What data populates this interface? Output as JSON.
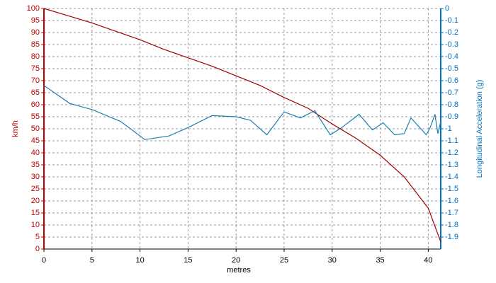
{
  "chart_data": {
    "type": "line",
    "x_label": "metres",
    "y_label": "km/h",
    "y2_label": "Longitudinal Acceleration (g)",
    "xlim": [
      0,
      41.3
    ],
    "xticks": [
      0,
      5,
      10,
      15,
      20,
      25,
      30,
      35,
      40
    ],
    "ylim": [
      0,
      100
    ],
    "yticks": [
      0,
      5,
      10,
      15,
      20,
      25,
      30,
      35,
      40,
      45,
      50,
      55,
      60,
      65,
      70,
      75,
      80,
      85,
      90,
      95,
      100
    ],
    "y2lim": [
      -2,
      0
    ],
    "y2ticks": [
      0,
      -0.1,
      -0.2,
      -0.3,
      -0.4,
      -0.5,
      -0.6,
      -0.7,
      -0.8,
      -0.9,
      -1,
      -1.1,
      -1.2,
      -1.3,
      -1.4,
      -1.5,
      -1.6,
      -1.7,
      -1.8,
      -1.9
    ],
    "grid": true,
    "y_color": "#c00000",
    "y2_color": "#0070c0",
    "series": [
      {
        "color": "#a00000",
        "axis": "y",
        "x": [
          0,
          2.5,
          5,
          7.5,
          10,
          12.5,
          15,
          17.5,
          20,
          22.5,
          25,
          27.5,
          30,
          32.5,
          35,
          37.5,
          40,
          41.3
        ],
        "values": [
          100,
          97,
          94,
          90.5,
          87,
          83,
          79.5,
          76,
          72,
          68,
          63,
          58.5,
          52,
          46,
          39,
          30,
          17,
          3
        ]
      },
      {
        "color": "#1a7fb0",
        "axis": "y2",
        "x": [
          0,
          2.7,
          5,
          8,
          10.5,
          13,
          15,
          17.5,
          20,
          21.5,
          23.2,
          25,
          26.7,
          28.2,
          29.8,
          31,
          32.8,
          34.2,
          35.3,
          36.5,
          37.5,
          38.2,
          39.8,
          40.2,
          40.7,
          41,
          41.3
        ],
        "values": [
          -0.64,
          -0.79,
          -0.84,
          -0.94,
          -1.09,
          -1.06,
          -0.99,
          -0.89,
          -0.9,
          -0.93,
          -1.05,
          -0.86,
          -0.91,
          -0.85,
          -1.05,
          -0.99,
          -0.88,
          -1.01,
          -0.95,
          -1.05,
          -1.04,
          -0.91,
          -1.05,
          -0.99,
          -0.88,
          -1.04,
          -0.94
        ]
      }
    ]
  }
}
